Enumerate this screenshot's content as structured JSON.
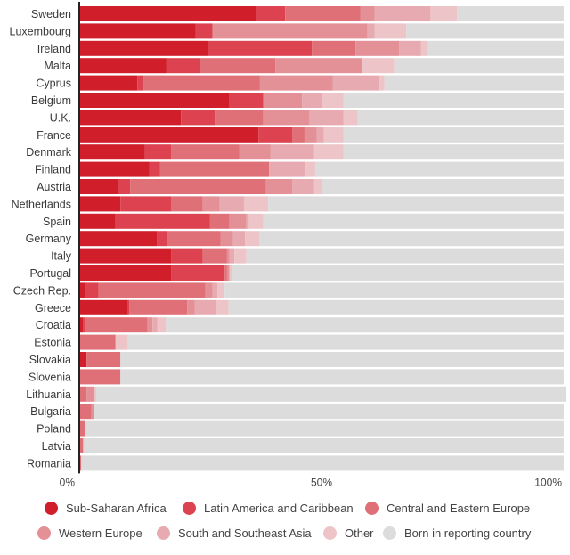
{
  "chart_data": {
    "type": "bar",
    "orientation": "horizontal",
    "stacked": true,
    "title": "",
    "xlabel": "",
    "ylabel": "",
    "xlim": [
      0,
      100
    ],
    "ticks": [
      {
        "value": 0,
        "label": "0%"
      },
      {
        "value": 50,
        "label": "50%"
      },
      {
        "value": 100,
        "label": "100%"
      }
    ],
    "legend_position": "bottom",
    "categories": [
      "Sweden",
      "Luxembourg",
      "Ireland",
      "Malta",
      "Cyprus",
      "Belgium",
      "U.K.",
      "France",
      "Denmark",
      "Finland",
      "Austria",
      "Netherlands",
      "Spain",
      "Germany",
      "Italy",
      "Portugal",
      "Czech Rep.",
      "Greece",
      "Croatia",
      "Estonia",
      "Slovakia",
      "Slovenia",
      "Lithuania",
      "Bulgaria",
      "Poland",
      "Latvia",
      "Romania"
    ],
    "series": [
      {
        "name": "Sub-Saharan Africa",
        "color": "#d01f2b",
        "values": [
          36.5,
          24,
          26.5,
          18,
          12,
          31,
          21,
          37,
          13.5,
          14.5,
          8,
          8.5,
          7.5,
          16,
          19,
          19,
          1.2,
          10,
          0.8,
          0,
          1.5,
          0,
          0,
          0,
          0,
          0,
          0
        ]
      },
      {
        "name": "Latin America and Caribbean",
        "color": "#dd4250",
        "values": [
          6,
          3.5,
          21.5,
          7,
          1.3,
          7,
          7,
          7,
          5.5,
          2.2,
          2.5,
          10.5,
          19.5,
          2.2,
          6.5,
          11,
          2.8,
          0.3,
          0.3,
          0,
          0,
          0,
          0,
          0,
          0,
          0,
          0
        ]
      },
      {
        "name": "Central and Eastern Europe",
        "color": "#e07077",
        "values": [
          15.5,
          0,
          9,
          15.5,
          24,
          0,
          10,
          2.5,
          14,
          22.5,
          28,
          6.5,
          4,
          11,
          5,
          0.5,
          22,
          12,
          13,
          7.5,
          7,
          8.5,
          1.5,
          2.5,
          1.2,
          0.8,
          0.4
        ]
      },
      {
        "name": "Western Europe",
        "color": "#e39097",
        "values": [
          3,
          32,
          9,
          18,
          15,
          8,
          9.5,
          2.5,
          6.5,
          0,
          5.5,
          3.5,
          3.5,
          2.5,
          0.5,
          0.5,
          1.5,
          1.5,
          1,
          0,
          0,
          0,
          1.5,
          0.5,
          0,
          0,
          0
        ]
      },
      {
        "name": "South and Southeast Asia",
        "color": "#e7aab0",
        "values": [
          11.5,
          1.5,
          4.5,
          0,
          9.5,
          4,
          7,
          1.5,
          9,
          7.5,
          4.5,
          5,
          0.5,
          2.5,
          1,
          0,
          1,
          4.5,
          1,
          0,
          0,
          0,
          0,
          0,
          0,
          0,
          0
        ]
      },
      {
        "name": "Other",
        "color": "#edc4c7",
        "values": [
          5.5,
          6.5,
          1.5,
          6.5,
          1.2,
          4.5,
          3,
          4,
          6,
          2,
          1.5,
          5,
          3,
          3,
          2.5,
          0.5,
          1.5,
          2.5,
          1.8,
          2.5,
          0,
          0,
          0.5,
          0,
          0,
          0.2,
          0
        ]
      },
      {
        "name": "Born in reporting country",
        "color": "#dcdcdc",
        "values": [
          22,
          32.5,
          28,
          35,
          37,
          45.5,
          42.5,
          45.5,
          45.5,
          51.3,
          50,
          61,
          62,
          62.8,
          65.5,
          68.5,
          70,
          69.2,
          82.1,
          90,
          91.5,
          91.5,
          97,
          97,
          98.8,
          99,
          99.6
        ]
      }
    ]
  }
}
